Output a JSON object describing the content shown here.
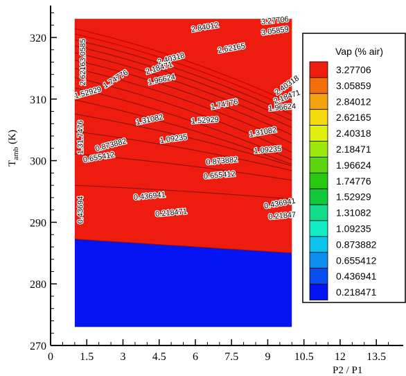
{
  "chart_data": {
    "type": "contour",
    "xlabel": "P2 / P1",
    "ylabel": "T",
    "ylabel_sub": "amb",
    "ylabel_unit": "(K)",
    "xlim": [
      0,
      14.5
    ],
    "ylim": [
      270,
      325
    ],
    "x_ticks": [
      0,
      1.5,
      3,
      4.5,
      6,
      7.5,
      9,
      10.5,
      12,
      13.5
    ],
    "x_tick_labels": [
      "0",
      "1.5",
      "3",
      "4.5",
      "6",
      "7.5",
      "9",
      "10.5",
      "12",
      "13.5"
    ],
    "y_ticks": [
      270,
      280,
      290,
      300,
      310,
      320
    ],
    "y_tick_labels": [
      "270",
      "280",
      "290",
      "300",
      "310",
      "320"
    ],
    "domain": {
      "x": [
        1,
        10
      ],
      "y": [
        273,
        323
      ]
    },
    "legend": {
      "title": "Vap (% air)",
      "placement": "right",
      "levels": [
        "3.27706",
        "3.05859",
        "2.84012",
        "2.62165",
        "2.40318",
        "2.18471",
        "1.96624",
        "1.74776",
        "1.52929",
        "1.31082",
        "1.09235",
        "0.873882",
        "0.655412",
        "0.436941",
        "0.218471"
      ],
      "colors": [
        "#ee1c0e",
        "#f46f0c",
        "#f4a20e",
        "#f4da0e",
        "#e0f00e",
        "#9ce80c",
        "#5cd60e",
        "#26c810",
        "#10c83a",
        "#10dc8c",
        "#12ecc4",
        "#0ec2ee",
        "#0c8ef0",
        "#0a4ef2",
        "#0414f4"
      ]
    },
    "contour_labels": [
      {
        "text": "3.27706",
        "x": 9.3,
        "y": 322.7,
        "angle": -6
      },
      {
        "text": "3.05859",
        "x": 9.3,
        "y": 321.0,
        "angle": -8
      },
      {
        "text": "2.84012",
        "x": 6.4,
        "y": 321.6,
        "angle": -10
      },
      {
        "text": "2.62165",
        "x": 7.5,
        "y": 318.2,
        "angle": -10
      },
      {
        "text": "2.40318",
        "x": 5.0,
        "y": 316.5,
        "angle": -15
      },
      {
        "text": "2.18471",
        "x": 4.5,
        "y": 315.0,
        "angle": -17
      },
      {
        "text": "1.96624",
        "x": 4.6,
        "y": 313.1,
        "angle": -12
      },
      {
        "text": "1.74776",
        "x": 2.7,
        "y": 313.2,
        "angle": -32
      },
      {
        "text": "2.40318",
        "x": 9.8,
        "y": 312.2,
        "angle": -35
      },
      {
        "text": "2.18471",
        "x": 9.8,
        "y": 310.3,
        "angle": -20
      },
      {
        "text": "1.96624",
        "x": 9.6,
        "y": 308.6,
        "angle": -5
      },
      {
        "text": "1.74776",
        "x": 7.2,
        "y": 309.1,
        "angle": -12
      },
      {
        "text": "1.52929",
        "x": 6.4,
        "y": 306.5,
        "angle": -4
      },
      {
        "text": "1.31082",
        "x": 4.1,
        "y": 306.6,
        "angle": -12
      },
      {
        "text": "1.31082",
        "x": 8.8,
        "y": 304.6,
        "angle": -10
      },
      {
        "text": "1.09235",
        "x": 5.1,
        "y": 303.5,
        "angle": -8
      },
      {
        "text": "1.09235",
        "x": 9.0,
        "y": 301.7,
        "angle": -5
      },
      {
        "text": "0.873882",
        "x": 2.5,
        "y": 302.5,
        "angle": -15
      },
      {
        "text": "0.655412",
        "x": 2.0,
        "y": 300.5,
        "angle": -10
      },
      {
        "text": "0.873882",
        "x": 7.1,
        "y": 299.9,
        "angle": -5
      },
      {
        "text": "0.655412",
        "x": 7.0,
        "y": 297.6,
        "angle": -5
      },
      {
        "text": "0.436941",
        "x": 4.1,
        "y": 294.2,
        "angle": -5
      },
      {
        "text": "0.436941",
        "x": 9.5,
        "y": 293.0,
        "angle": -10
      },
      {
        "text": "0.218471",
        "x": 5.0,
        "y": 291.5,
        "angle": -5
      },
      {
        "text": "0.21847",
        "x": 9.6,
        "y": 291.0,
        "angle": -5
      },
      {
        "text": "2.62163.0585",
        "x": 1.35,
        "y": 316.0,
        "angle": -90
      },
      {
        "text": "1.52929",
        "x": 1.55,
        "y": 311.0,
        "angle": -15
      },
      {
        "text": "1.31.7476",
        "x": 1.25,
        "y": 303.8,
        "angle": -90
      },
      {
        "text": "0.43694",
        "x": 1.25,
        "y": 292.0,
        "angle": -90
      }
    ]
  }
}
